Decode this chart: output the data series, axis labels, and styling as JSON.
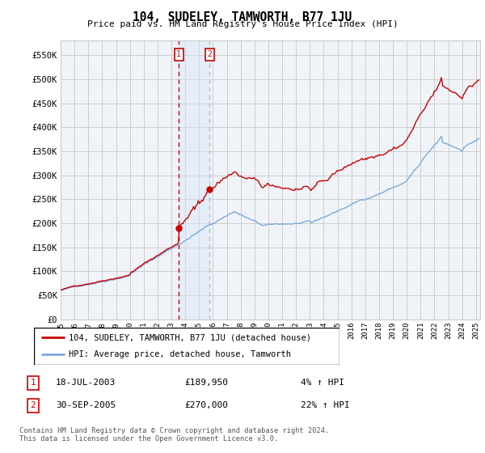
{
  "title": "104, SUDELEY, TAMWORTH, B77 1JU",
  "subtitle": "Price paid vs. HM Land Registry's House Price Index (HPI)",
  "ylabel_ticks": [
    "£0",
    "£50K",
    "£100K",
    "£150K",
    "£200K",
    "£250K",
    "£300K",
    "£350K",
    "£400K",
    "£450K",
    "£500K",
    "£550K"
  ],
  "ytick_values": [
    0,
    50000,
    100000,
    150000,
    200000,
    250000,
    300000,
    350000,
    400000,
    450000,
    500000,
    550000
  ],
  "ylim": [
    0,
    580000
  ],
  "xlim_start": 1995.0,
  "xlim_end": 2025.3,
  "transaction1_x": 2003.54,
  "transaction1_y": 189950,
  "transaction1_label": "1",
  "transaction2_x": 2005.75,
  "transaction2_y": 270000,
  "transaction2_label": "2",
  "legend_line1": "104, SUDELEY, TAMWORTH, B77 1JU (detached house)",
  "legend_line2": "HPI: Average price, detached house, Tamworth",
  "table_row1_num": "1",
  "table_row1_date": "18-JUL-2003",
  "table_row1_price": "£189,950",
  "table_row1_hpi": "4% ↑ HPI",
  "table_row2_num": "2",
  "table_row2_date": "30-SEP-2005",
  "table_row2_price": "£270,000",
  "table_row2_hpi": "22% ↑ HPI",
  "footer": "Contains HM Land Registry data © Crown copyright and database right 2024.\nThis data is licensed under the Open Government Licence v3.0.",
  "line_red_color": "#cc0000",
  "line_blue_color": "#7aaadd",
  "shade_color": "#d8e8f8",
  "grid_color": "#cccccc",
  "bg_color": "#f0f4f8"
}
